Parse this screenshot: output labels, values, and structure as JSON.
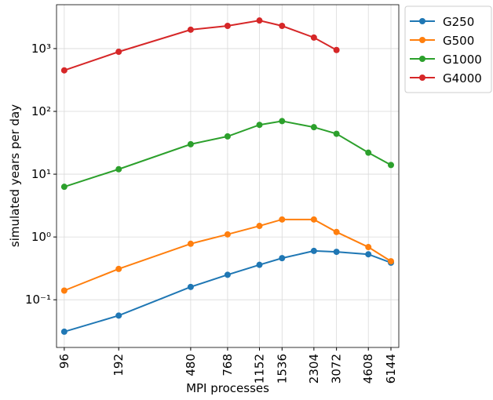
{
  "chart_data": {
    "type": "line",
    "x_label": "MPI processes",
    "y_label": "simulated years per day",
    "x": [
      96,
      192,
      480,
      768,
      1152,
      1536,
      2304,
      3072,
      4608,
      6144
    ],
    "series": [
      {
        "name": "G250",
        "color": "#1f77b4",
        "values": [
          0.031,
          0.056,
          0.16,
          0.25,
          0.36,
          0.46,
          0.6,
          0.58,
          0.53,
          0.39
        ]
      },
      {
        "name": "G500",
        "color": "#ff7f0e",
        "values": [
          0.14,
          0.31,
          0.78,
          1.1,
          1.5,
          1.9,
          1.9,
          1.2,
          0.69,
          0.41
        ]
      },
      {
        "name": "G1000",
        "color": "#2ca02c",
        "values": [
          6.3,
          12,
          30,
          40,
          61,
          70,
          56,
          44,
          22,
          14
        ]
      },
      {
        "name": "G4000",
        "color": "#d62728",
        "values": [
          450,
          890,
          2000,
          2300,
          2800,
          2300,
          1500,
          950,
          null,
          null
        ]
      }
    ],
    "xscale": "log",
    "yscale": "log",
    "xlim": [
      87,
      6790
    ],
    "ylim": [
      0.0174,
      5000
    ],
    "xticks": [
      96,
      192,
      480,
      768,
      1152,
      1536,
      2304,
      3072,
      4608,
      6144
    ],
    "yticks": [
      {
        "value": 0.1,
        "label": "10⁻¹"
      },
      {
        "value": 1,
        "label": "10⁰"
      },
      {
        "value": 10,
        "label": "10¹"
      },
      {
        "value": 100,
        "label": "10²"
      },
      {
        "value": 1000,
        "label": "10³"
      }
    ],
    "grid": true,
    "legend": "outside upper right"
  }
}
